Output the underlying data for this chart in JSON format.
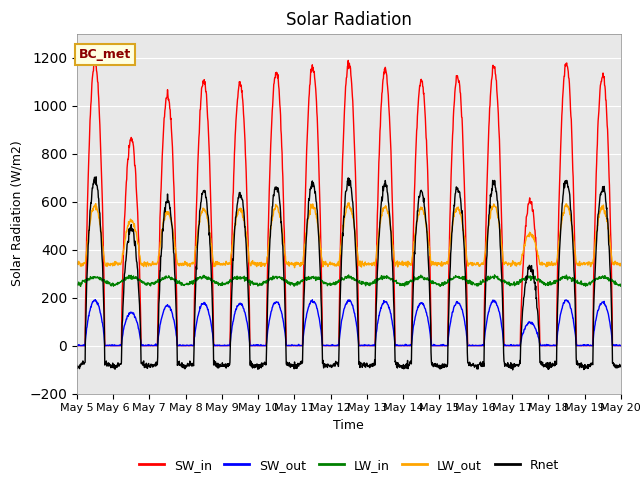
{
  "title": "Solar Radiation",
  "xlabel": "Time",
  "ylabel": "Solar Radiation (W/m2)",
  "ylim": [
    -200,
    1300
  ],
  "xlim_days": [
    5,
    20
  ],
  "annotation_text": "BC_met",
  "legend_entries": [
    "SW_in",
    "SW_out",
    "LW_in",
    "LW_out",
    "Rnet"
  ],
  "line_colors": [
    "red",
    "blue",
    "green",
    "orange",
    "black"
  ],
  "background_color": "#ffffff",
  "plot_bg_color": "#e8e8e8",
  "grid_color": "#ffffff",
  "title_fontsize": 12,
  "label_fontsize": 9,
  "tick_fontsize": 8,
  "tick_dates": [
    "May 5",
    "May 6",
    "May 7",
    "May 8",
    "May 9",
    "May 10",
    "May 11",
    "May 12",
    "May 13",
    "May 14",
    "May 15",
    "May 16",
    "May 17",
    "May 18",
    "May 19",
    "May 20"
  ],
  "n_days": 15,
  "dt_hours": 0.25,
  "sw_peak": 1200,
  "sw_rise_hour": 5.5,
  "sw_set_hour": 18.5,
  "lw_in_base": 270,
  "lw_out_base": 340,
  "lw_out_peak": 250,
  "rnet_night": -100,
  "cloud_factors": [
    0.98,
    0.72,
    0.87,
    0.92,
    0.91,
    0.95,
    0.97,
    0.98,
    0.96,
    0.92,
    0.94,
    0.97,
    0.5,
    0.98,
    0.94
  ]
}
